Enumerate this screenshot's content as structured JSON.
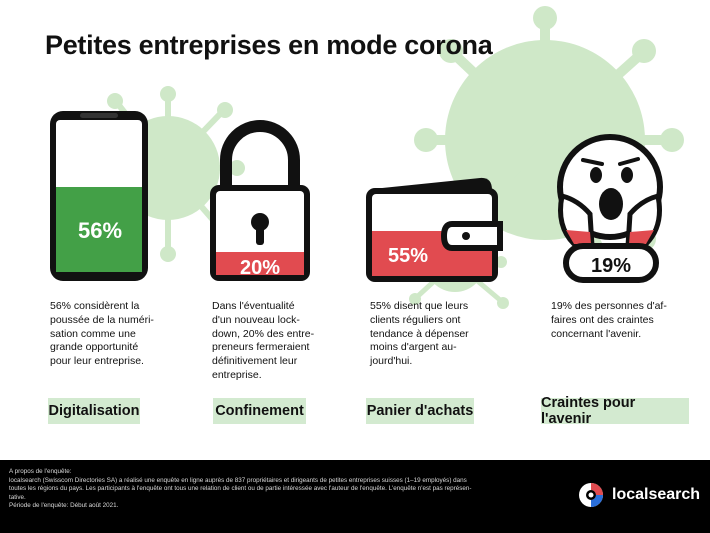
{
  "title": "Petites entreprises en mode corona",
  "colors": {
    "green": "#43a047",
    "red": "#e14b50",
    "virus": "#cfe8c8",
    "label_bg": "#d3ead0",
    "footer_bg": "#000000"
  },
  "cards": [
    {
      "icon": "smartphone-icon",
      "value": "56%",
      "fraction": 0.56,
      "description": [
        "56% considèrent la",
        "poussée de la numéri-",
        "sation comme une",
        "grande opportunité",
        "pour leur entreprise."
      ],
      "label": "Digitalisation"
    },
    {
      "icon": "padlock-icon",
      "value": "20%",
      "fraction": 0.2,
      "description": [
        "Dans l'éventualité",
        "d'un nouveau lock-",
        "down, 20% des entre-",
        "preneurs fermeraient",
        "définitivement leur",
        "entreprise."
      ],
      "label": "Confinement"
    },
    {
      "icon": "wallet-icon",
      "value": "55%",
      "fraction": 0.55,
      "description": [
        "55% disent que leurs",
        "clients réguliers ont",
        "tendance à dépenser",
        "moins d'argent au-",
        "jourd'hui."
      ],
      "label": "Panier d'achats"
    },
    {
      "icon": "scared-face-icon",
      "value": "19%",
      "fraction": 0.19,
      "description": [
        "19% des personnes d'af-",
        "faires ont des craintes",
        "concernant l'avenir."
      ],
      "label": "Craintes pour l'avenir"
    }
  ],
  "footer": {
    "lines": [
      "A propos de l'enquête:",
      "localsearch (Swisscom Directories SA) a réalisé une enquête en ligne auprès de 837 propriétaires et dirigeants de petites entreprises suisses (1–19 employés) dans",
      "toutes les régions du pays. Les participants à l'enquête ont tous une relation de client ou de partie intéressée avec l'auteur de l'enquête. L'enquête n'est pas représen-",
      "tative.",
      "Période de l'enquête: Début août 2021."
    ],
    "brand": "localsearch"
  }
}
